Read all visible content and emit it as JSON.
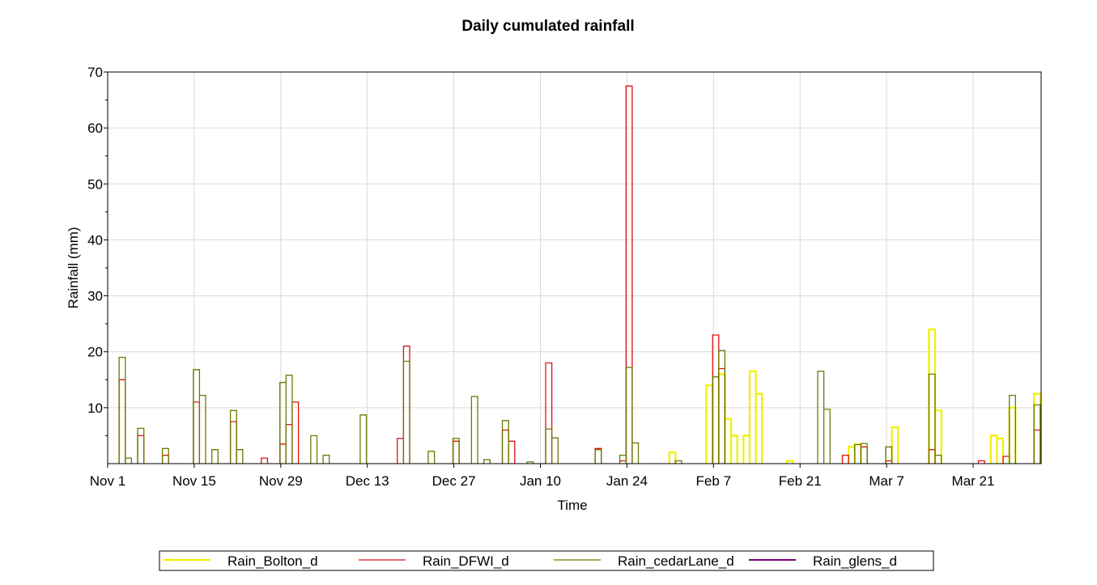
{
  "chart_data": {
    "type": "line",
    "title": "Daily cumulated rainfall",
    "xlabel": "Time",
    "ylabel": "Rainfall (mm)",
    "x_unit": "date",
    "xlim": [
      "Nov 1",
      "Apr 1"
    ],
    "ylim": [
      0,
      70
    ],
    "yticks": [
      10,
      20,
      30,
      40,
      50,
      60,
      70
    ],
    "xticks": [
      "Nov 1",
      "Nov 15",
      "Nov 29",
      "Dec 13",
      "Dec 27",
      "Jan 10",
      "Jan 24",
      "Feb 7",
      "Feb 21",
      "Mar 7",
      "Mar 21"
    ],
    "grid": true,
    "legend_position": "bottom",
    "series": [
      {
        "name": "Rain_Bolton_d",
        "color": "#f0f000",
        "stroke_width": 2.2,
        "events": [
          [
            "Jan 31",
            2
          ],
          [
            "Feb 6",
            14
          ],
          [
            "Feb 8",
            16
          ],
          [
            "Feb 9",
            8
          ],
          [
            "Feb 10",
            5
          ],
          [
            "Feb 12",
            5
          ],
          [
            "Feb 13",
            16.5
          ],
          [
            "Feb 14",
            12.5
          ],
          [
            "Feb 19",
            0.5
          ],
          [
            "Mar 1",
            3
          ],
          [
            "Mar 2",
            3.5
          ],
          [
            "Mar 8",
            6.5
          ],
          [
            "Mar 14",
            24
          ],
          [
            "Mar 15",
            9.5
          ],
          [
            "Mar 24",
            5
          ],
          [
            "Mar 25",
            4.5
          ],
          [
            "Mar 27",
            10
          ],
          [
            "Mar 31",
            12.5
          ]
        ]
      },
      {
        "name": "Rain_DFWI_d",
        "color": "#e01010",
        "stroke_width": 1.3,
        "events": [
          [
            "Nov 3",
            15
          ],
          [
            "Nov 6",
            5
          ],
          [
            "Nov 10",
            1.5
          ],
          [
            "Nov 15",
            11
          ],
          [
            "Nov 21",
            7.5
          ],
          [
            "Nov 26",
            1
          ],
          [
            "Nov 29",
            3.5
          ],
          [
            "Nov 30",
            7
          ],
          [
            "Dec 1",
            11
          ],
          [
            "Dec 18",
            4.5
          ],
          [
            "Dec 19",
            21
          ],
          [
            "Dec 27",
            4
          ],
          [
            "Jan 4",
            6
          ],
          [
            "Jan 5",
            4
          ],
          [
            "Jan 11",
            18
          ],
          [
            "Jan 19",
            2.7
          ],
          [
            "Jan 23",
            0.5
          ],
          [
            "Jan 24",
            67.5
          ],
          [
            "Feb 7",
            23
          ],
          [
            "Feb 8",
            17
          ],
          [
            "Feb 28",
            1.5
          ],
          [
            "Mar 3",
            3
          ],
          [
            "Mar 7",
            0.5
          ],
          [
            "Mar 14",
            2.5
          ],
          [
            "Mar 22",
            0.5
          ],
          [
            "Mar 26",
            1.3
          ],
          [
            "Mar 31",
            6
          ]
        ]
      },
      {
        "name": "Rain_cedarLane_d",
        "color": "#6b7a00",
        "stroke_width": 1.3,
        "events": [
          [
            "Nov 3",
            19
          ],
          [
            "Nov 4",
            1
          ],
          [
            "Nov 6",
            6.3
          ],
          [
            "Nov 10",
            2.7
          ],
          [
            "Nov 15",
            16.8
          ],
          [
            "Nov 16",
            12.2
          ],
          [
            "Nov 18",
            2.5
          ],
          [
            "Nov 21",
            9.5
          ],
          [
            "Nov 22",
            2.5
          ],
          [
            "Nov 29",
            14.5
          ],
          [
            "Nov 30",
            15.8
          ],
          [
            "Dec 4",
            5
          ],
          [
            "Dec 6",
            1.5
          ],
          [
            "Dec 12",
            8.7
          ],
          [
            "Dec 19",
            18.3
          ],
          [
            "Dec 23",
            2.2
          ],
          [
            "Dec 27",
            4.5
          ],
          [
            "Dec 30",
            12
          ],
          [
            "Jan 1",
            0.7
          ],
          [
            "Jan 4",
            7.7
          ],
          [
            "Jan 8",
            0.3
          ],
          [
            "Jan 11",
            6.2
          ],
          [
            "Jan 12",
            4.6
          ],
          [
            "Jan 19",
            2.5
          ],
          [
            "Jan 23",
            1.5
          ],
          [
            "Jan 24",
            17.2
          ],
          [
            "Jan 25",
            3.7
          ],
          [
            "Feb 1",
            0.5
          ],
          [
            "Feb 7",
            15.5
          ],
          [
            "Feb 8",
            20.2
          ],
          [
            "Feb 24",
            16.5
          ],
          [
            "Feb 25",
            9.7
          ],
          [
            "Mar 2",
            3.4
          ],
          [
            "Mar 3",
            3.6
          ],
          [
            "Mar 7",
            3
          ],
          [
            "Mar 14",
            16
          ],
          [
            "Mar 15",
            1.5
          ],
          [
            "Mar 27",
            12.2
          ],
          [
            "Mar 31",
            10.5
          ]
        ]
      },
      {
        "name": "Rain_glens_d",
        "color": "#7a007a",
        "stroke_width": 2,
        "events": []
      }
    ]
  }
}
